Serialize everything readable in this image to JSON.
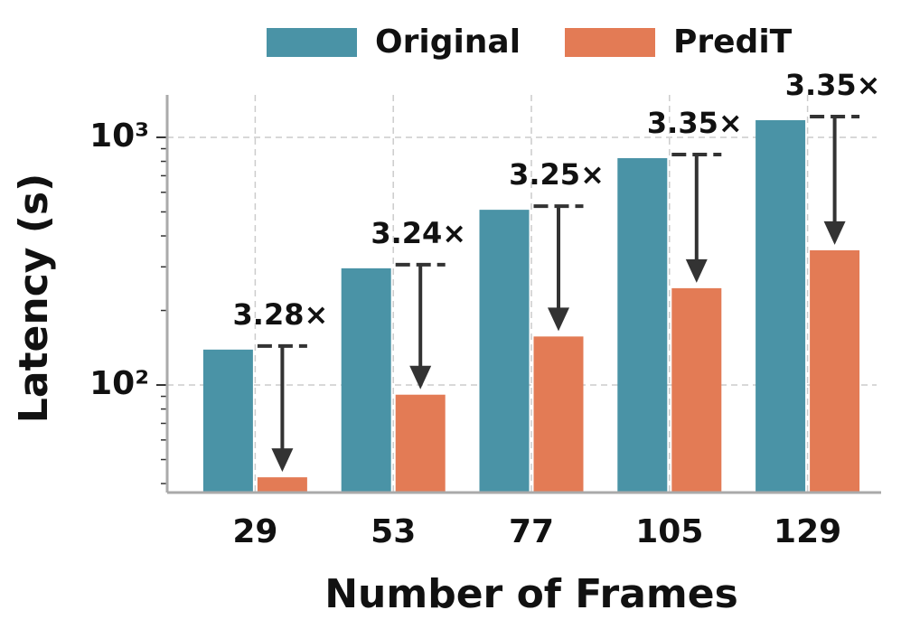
{
  "chart_data": {
    "type": "bar",
    "y_scale": "log",
    "x_label": "Number of Frames",
    "y_label": "Latency (s)",
    "categories": [
      "29",
      "53",
      "77",
      "105",
      "129"
    ],
    "series": [
      {
        "name": "Original",
        "color": "#4a93a6",
        "values": [
          139,
          296,
          510,
          824,
          1173
        ]
      },
      {
        "name": "PrediT",
        "color": "#e37b55",
        "values": [
          42.4,
          91.4,
          157,
          246,
          350
        ]
      }
    ],
    "annotations": [
      "3.28×",
      "3.24×",
      "3.25×",
      "3.35×",
      "3.35×"
    ],
    "ylim": [
      36.8,
      1484
    ],
    "yticks": [
      {
        "value": 100,
        "label": "10²"
      },
      {
        "value": 1000,
        "label": "10³"
      }
    ],
    "grid": true,
    "legend": "top"
  }
}
